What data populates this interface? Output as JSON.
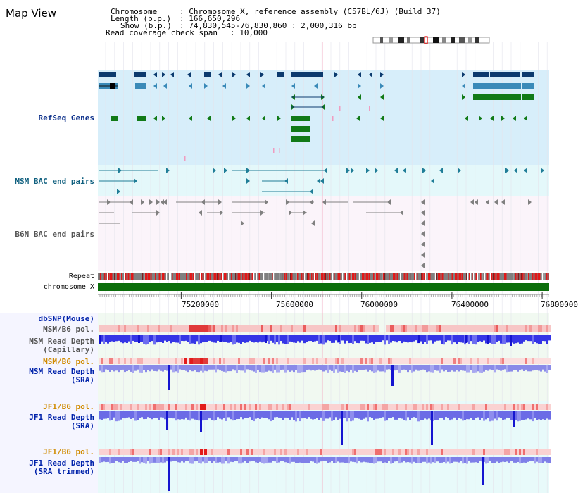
{
  "view": {
    "title": "Map View",
    "info": {
      "chromosome_key": "Chromosome",
      "chromosome_val": ": Chromosome X, reference assembly (C57BL/6J) (Build 37)",
      "length_key": "Length (b.p.)",
      "length_val": ": 166,650,296",
      "show_key": "Show (b.p.)",
      "show_val": ": 74,830,545-76,830,860 : 2,000,316 bp",
      "span_key": "Read coverage check span",
      "span_val": ": 10,000"
    }
  },
  "tracks": {
    "refseq": "RefSeq Genes",
    "msm_bac": "MSM BAC end pairs",
    "b6n_bac": "B6N BAC end pairs",
    "repeat": "Repeat",
    "chromosome": "chromosome X",
    "dbsnp": "dbSNP(Mouse)",
    "msm_b6_pol_1": "MSM/B6 pol.",
    "msm_depth_cap_1": "MSM Read Depth",
    "msm_depth_cap_2": "(Capillary)",
    "msm_b6_pol_2": "MSM/B6 pol.",
    "msm_depth_sra_1": "MSM Read Depth",
    "msm_depth_sra_2": "(SRA)",
    "jf1_b6_pol_1": "JF1/B6 pol.",
    "jf1_depth_sra_1": "JF1 Read Depth",
    "jf1_depth_sra_2": "(SRA)",
    "jf1_b6_pol_2": "JF1/B6 pol.",
    "jf1_depth_trim_1": "JF1 Read Depth",
    "jf1_depth_trim_2": "(SRA trimmed)"
  },
  "axis": {
    "ticks": [
      75200000,
      75600000,
      76000000,
      76400000,
      76800000
    ],
    "tick_labels": [
      "75200000",
      "75600000",
      "76000000",
      "76400000",
      "76800000"
    ],
    "start": 74830545,
    "end": 76830860
  },
  "colors": {
    "gene_dark": "#0c3a6e",
    "gene_mid": "#3a8ab8",
    "gene_green": "#117a17",
    "bac_teal": "#1f7d97",
    "b6n_grey": "#808080",
    "refseq_label": "#0b2f8a",
    "msm_bac_label": "#10607f",
    "b6n_label": "#555555",
    "orange_label": "#d08b00",
    "blue_label": "#0022aa"
  }
}
